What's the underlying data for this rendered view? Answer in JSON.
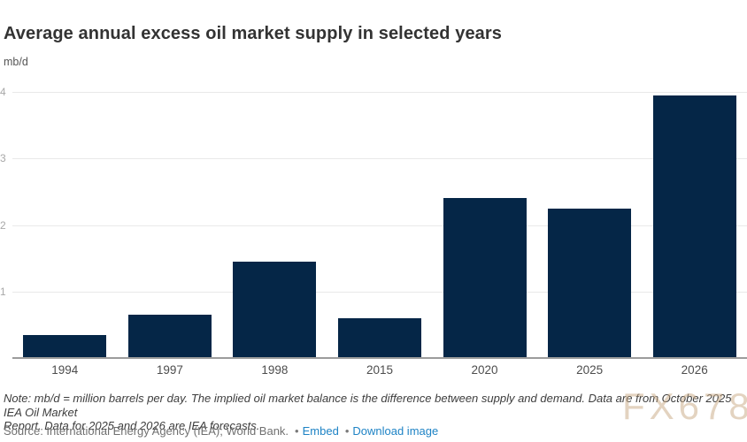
{
  "header": {
    "title": "Average annual excess oil market supply in selected years",
    "unit": "mb/d"
  },
  "chart_data": {
    "type": "bar",
    "categories": [
      "1994",
      "1997",
      "1998",
      "2015",
      "2020",
      "2025",
      "2026"
    ],
    "values": [
      0.35,
      0.65,
      1.45,
      0.6,
      2.4,
      2.25,
      3.95
    ],
    "title": "Average annual excess oil market supply in selected years",
    "xlabel": "",
    "ylabel": "mb/d",
    "ylim": [
      0,
      4.2
    ],
    "yticks": [
      1,
      2,
      3,
      4
    ],
    "grid": true,
    "legend": false,
    "bar_color": "#052647"
  },
  "footer": {
    "note_lines": [
      "Note: mb/d = million barrels per day. The implied oil market balance is the difference between supply and demand. Data are from October 2025 IEA Oil Market",
      "Report. Data for 2025 and 2026 are IEA forecasts."
    ],
    "source": "Source: International Energy Agency (IEA); World Bank.",
    "separator": "•",
    "links": [
      {
        "label": "Embed"
      },
      {
        "label": "Download image"
      }
    ],
    "link_color": "#1e83c5"
  },
  "watermark": {
    "text": "FX678",
    "color": "#c9a983"
  }
}
